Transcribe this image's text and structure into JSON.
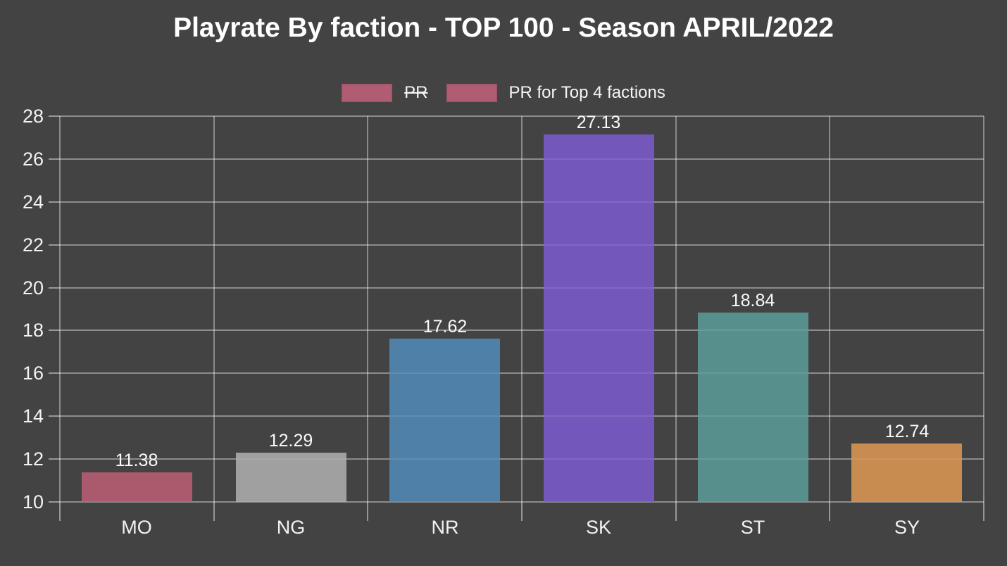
{
  "title": "Playrate By faction - TOP 100 - Season APRIL/2022",
  "colors": {
    "background": "#434343",
    "text": "#f2f2f2",
    "grid": "#8f8f8f",
    "legend_swatch": "#b05c72"
  },
  "legend": {
    "items": [
      {
        "label": "PR",
        "swatch_color": "#b05c72",
        "hidden": true
      },
      {
        "label": "PR for Top 4 factions",
        "swatch_color": "#b05c72",
        "hidden": false
      }
    ]
  },
  "chart_data": {
    "type": "bar",
    "title": "Playrate By faction - TOP 100 - Season APRIL/2022",
    "categories": [
      "MO",
      "NG",
      "NR",
      "SK",
      "ST",
      "SY"
    ],
    "series": [
      {
        "name": "PR for Top 4 factions",
        "values": [
          11.38,
          12.29,
          17.62,
          27.13,
          18.84,
          12.74
        ],
        "bar_colors": [
          "#ab5a6e",
          "#a0a0a0",
          "#4f80a7",
          "#7457bb",
          "#578f8c",
          "#c88b50"
        ]
      }
    ],
    "hidden_series_names": [
      "PR"
    ],
    "xlabel": "",
    "ylabel": "",
    "ylim": [
      10,
      28
    ],
    "ytick_step": 2,
    "yticks": [
      10,
      12,
      14,
      16,
      18,
      20,
      22,
      24,
      26,
      28
    ],
    "grid": true,
    "legend_position": "top",
    "value_labels": true
  }
}
